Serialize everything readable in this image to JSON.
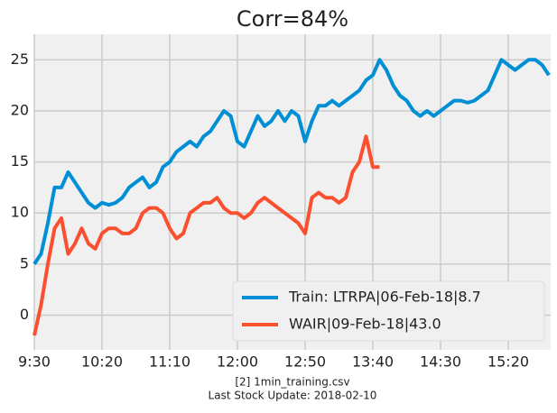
{
  "chart_data": {
    "type": "line",
    "title": "Corr=84%",
    "categories": [
      "9:30",
      null,
      null,
      null,
      null,
      null,
      null,
      null,
      null,
      null,
      "10:20",
      null,
      null,
      null,
      null,
      null,
      null,
      null,
      null,
      null,
      "11:10",
      null,
      null,
      null,
      null,
      null,
      null,
      null,
      null,
      null,
      "12:00",
      null,
      null,
      null,
      null,
      null,
      null,
      null,
      null,
      null,
      "12:50",
      null,
      null,
      null,
      null,
      null,
      null,
      null,
      null,
      null,
      "13:40",
      null,
      null,
      null,
      null,
      null,
      null,
      null,
      null,
      null,
      "14:30",
      null,
      null,
      null,
      null,
      null,
      null,
      null,
      null,
      null,
      "15:20",
      null,
      null,
      null,
      null,
      null,
      null
    ],
    "series": [
      {
        "name": "Train: LTRPA|06-Feb-18|8.7",
        "color": "#008fd5",
        "values": [
          5,
          6,
          9,
          12.5,
          12.5,
          14,
          13,
          12,
          11,
          10.5,
          11,
          10.8,
          11,
          11.5,
          12.5,
          13,
          13.5,
          12.5,
          13,
          14.5,
          15,
          16,
          16.5,
          17,
          16.5,
          17.5,
          18,
          19,
          20,
          19.5,
          17,
          16.5,
          18,
          19.5,
          18.5,
          19,
          20,
          19,
          20,
          19.5,
          17,
          19,
          20.5,
          20.5,
          21,
          20.5,
          21,
          21.5,
          22,
          23,
          23.5,
          25,
          24,
          22.5,
          21.5,
          21,
          20,
          19.5,
          20,
          19.5,
          20,
          20.5,
          21,
          21,
          20.8,
          21,
          21.5,
          22,
          23.5,
          25,
          24.5,
          24,
          24.5,
          25,
          25,
          24.5,
          23.5
        ]
      },
      {
        "name": "WAIR|09-Feb-18|43.0",
        "color": "#fc4f30",
        "values": [
          -2,
          1,
          5,
          8.5,
          9.5,
          6,
          7,
          8.5,
          7,
          6.5,
          8,
          8.5,
          8.5,
          8,
          8,
          8.5,
          10,
          10.5,
          10.5,
          10,
          8.5,
          7.5,
          8,
          10,
          10.5,
          11,
          11,
          11.5,
          10.5,
          10,
          10,
          9.5,
          10,
          11,
          11.5,
          11,
          10.5,
          10,
          9.5,
          9,
          8,
          11.5,
          12,
          11.5,
          11.5,
          11,
          11.5,
          14,
          15,
          17.5,
          14.5,
          14.5,
          null,
          null,
          null,
          null,
          null,
          null,
          null,
          null,
          null,
          null,
          null,
          null,
          null,
          null,
          null,
          null,
          null,
          null,
          null,
          null,
          null,
          null,
          null,
          null,
          null
        ]
      }
    ],
    "ylim": [
      -3.4,
      27.5
    ],
    "yticks": [
      0,
      5,
      10,
      15,
      20,
      25
    ],
    "grid": true,
    "legend": "lower right",
    "footnotes": [
      "[2] 1min_training.csv",
      "Last Stock Update: 2018-02-10"
    ]
  }
}
